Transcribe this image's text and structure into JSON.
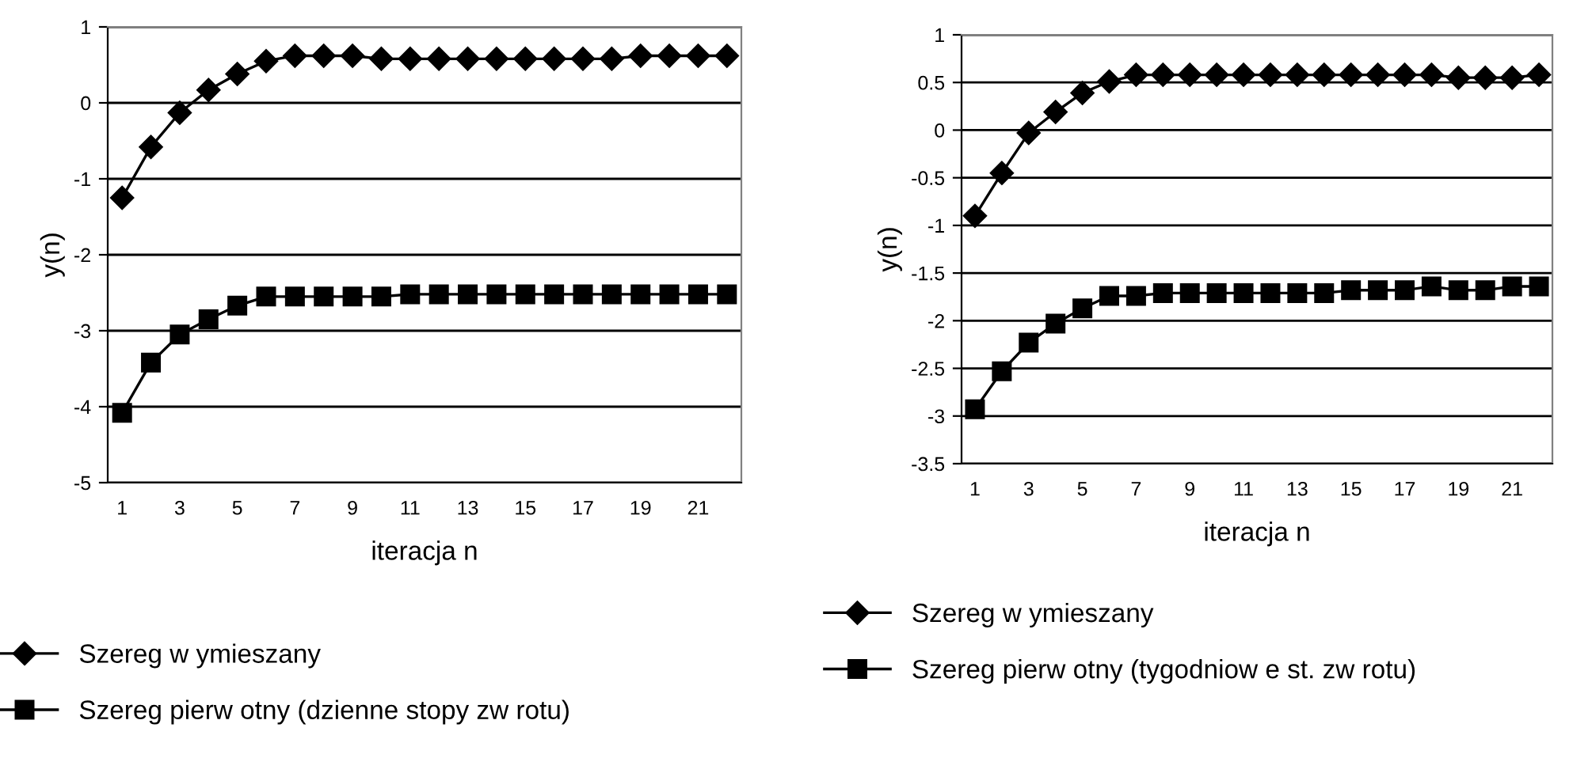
{
  "chart_data": [
    {
      "type": "line",
      "xlabel": "iteracja n",
      "ylabel": "y(n)",
      "categories": [
        "1",
        null,
        "3",
        null,
        "5",
        null,
        "7",
        null,
        "9",
        null,
        "11",
        null,
        "13",
        null,
        "15",
        null,
        "17",
        null,
        "19",
        null,
        "21",
        null
      ],
      "series": [
        {
          "name": "Szereg w ymieszany",
          "color": "#000000",
          "marker": "diamond",
          "values": [
            -1.25,
            -0.58,
            -0.13,
            0.17,
            0.38,
            0.55,
            0.62,
            0.62,
            0.62,
            0.58,
            0.58,
            0.58,
            0.58,
            0.58,
            0.58,
            0.58,
            0.58,
            0.58,
            0.62,
            0.62,
            0.62,
            0.62
          ]
        },
        {
          "name": "Szereg pierw otny (dzienne stopy zw rotu)",
          "color": "#000000",
          "marker": "square",
          "values": [
            -4.08,
            -3.42,
            -3.05,
            -2.85,
            -2.67,
            -2.55,
            -2.55,
            -2.55,
            -2.55,
            -2.55,
            -2.52,
            -2.52,
            -2.52,
            -2.52,
            -2.52,
            -2.52,
            -2.52,
            -2.52,
            -2.52,
            -2.52,
            -2.52,
            -2.52
          ]
        }
      ],
      "ylim": [
        -5,
        1
      ],
      "yticks": [
        -5,
        -4,
        -3,
        -2,
        -1,
        0,
        1
      ],
      "grid": "y",
      "legend": "bottom"
    },
    {
      "type": "line",
      "xlabel": "iteracja n",
      "ylabel": "y(n)",
      "categories": [
        "1",
        null,
        "3",
        null,
        "5",
        null,
        "7",
        null,
        "9",
        null,
        "11",
        null,
        "13",
        null,
        "15",
        null,
        "17",
        null,
        "19",
        null,
        "21",
        null
      ],
      "series": [
        {
          "name": "Szereg w ymieszany",
          "color": "#000000",
          "marker": "diamond",
          "values": [
            -0.9,
            -0.45,
            -0.03,
            0.19,
            0.39,
            0.51,
            0.58,
            0.58,
            0.58,
            0.58,
            0.58,
            0.58,
            0.58,
            0.58,
            0.58,
            0.58,
            0.58,
            0.58,
            0.55,
            0.55,
            0.55,
            0.58
          ]
        },
        {
          "name": "Szereg pierw otny (tygodniow e st. zw rotu)",
          "color": "#000000",
          "marker": "square",
          "values": [
            -2.93,
            -2.53,
            -2.23,
            -2.03,
            -1.87,
            -1.74,
            -1.74,
            -1.71,
            -1.71,
            -1.71,
            -1.71,
            -1.71,
            -1.71,
            -1.71,
            -1.68,
            -1.68,
            -1.68,
            -1.64,
            -1.68,
            -1.68,
            -1.64,
            -1.64
          ]
        }
      ],
      "ylim": [
        -3.5,
        1
      ],
      "yticks": [
        -3.5,
        -3,
        -2.5,
        -2,
        -1.5,
        -1,
        -0.5,
        0,
        0.5,
        1
      ],
      "grid": "y",
      "legend": "bottom"
    }
  ]
}
